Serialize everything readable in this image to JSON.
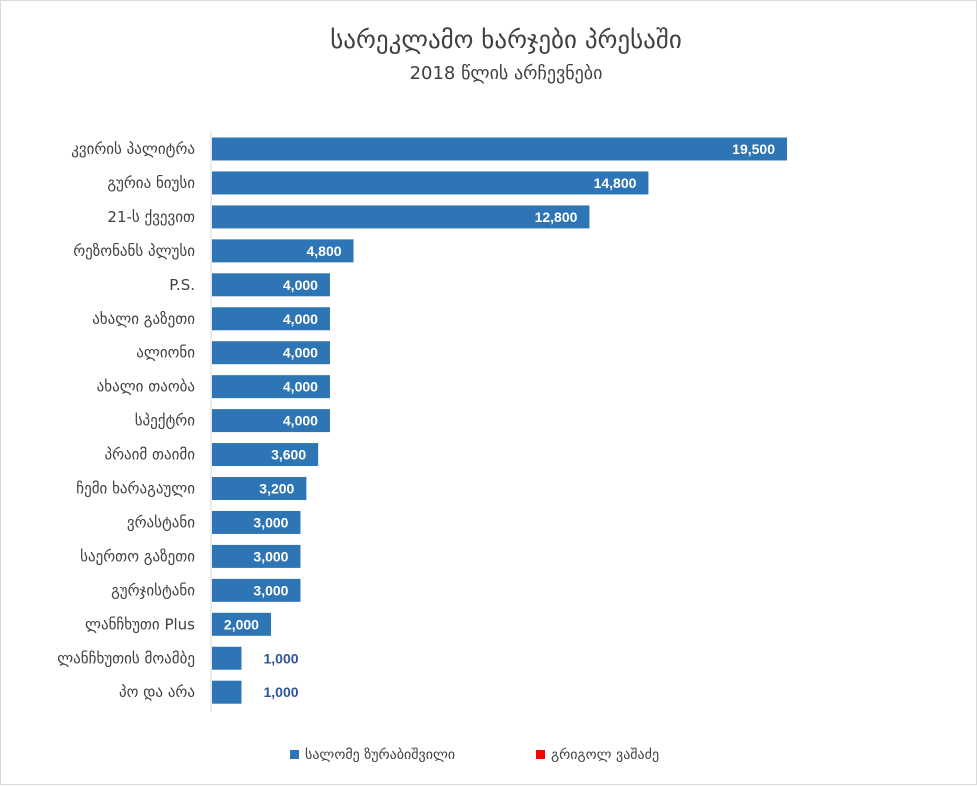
{
  "chart_data": {
    "type": "bar",
    "orientation": "horizontal",
    "title": "სარეკლამო ხარჯები პრესაში",
    "subtitle": "2018 წლის არჩევნები",
    "categories": [
      "კვირის პალიტრა",
      "გურია ნიუსი",
      "21-ს ქვევით",
      "რეზონანს პლუსი",
      "P.S.",
      "ახალი გაზეთი",
      "ალიონი",
      "ახალი თაობა",
      "სპექტრი",
      "პრაიმ თაიმი",
      "ჩემი ხარაგაული",
      "ვრასტანი",
      "საერთო გაზეთი",
      "გურჯისტანი",
      "ლანჩხუთი Plus",
      "ლანჩხუთის მოამბე",
      "პო და არა"
    ],
    "series": [
      {
        "name": "სალომე ზურაბიშვილი",
        "color": "#2e75b6",
        "values": [
          19500,
          14800,
          12800,
          4800,
          4000,
          4000,
          4000,
          4000,
          4000,
          3600,
          3200,
          3000,
          3000,
          3000,
          2000,
          1000,
          1000
        ],
        "labels": [
          "19,500",
          "14,800",
          "12,800",
          "4,800",
          "4,000",
          "4,000",
          "4,000",
          "4,000",
          "4,000",
          "3,600",
          "3,200",
          "3,000",
          "3,000",
          "3,000",
          "2,000",
          "1,000",
          "1,000"
        ]
      },
      {
        "name": "გრიგოლ ვაშაძე",
        "color": "#ff0000",
        "values": [
          0,
          0,
          0,
          0,
          0,
          0,
          0,
          0,
          0,
          0,
          0,
          0,
          0,
          0,
          0,
          0,
          0
        ]
      }
    ],
    "xlim": [
      0,
      20000
    ],
    "grid": false,
    "legend_position": "bottom"
  }
}
